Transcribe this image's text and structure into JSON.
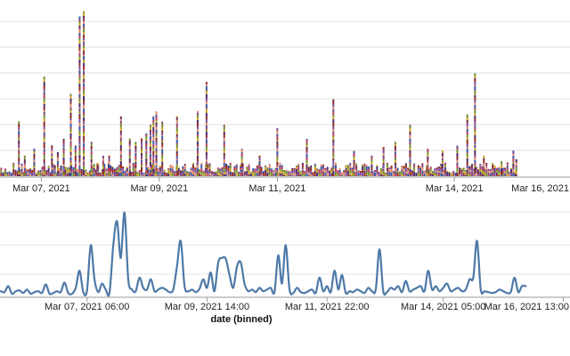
{
  "chart_data": [
    {
      "type": "bar",
      "name": "stacked-volume",
      "stacked": true,
      "x_axis": {
        "domain_days": [
          6.3,
          15.96
        ],
        "ticks": [
          {
            "day": 7.0,
            "label": "Mar 07, 2021"
          },
          {
            "day": 9.0,
            "label": "Mar 09, 2021"
          },
          {
            "day": 11.0,
            "label": "Mar 11, 2021"
          },
          {
            "day": 14.0,
            "label": "Mar 14, 2021"
          },
          {
            "day": 16.0,
            "label": "Mar 16, 2021"
          }
        ]
      },
      "ylim": [
        0,
        100
      ],
      "grid": true,
      "series_colors": [
        "#9b2d20",
        "#4a2f7a",
        "#c9a227",
        "#6f8f3a",
        "#b84060",
        "#3a5aa8",
        "#e08a6a",
        "#7a4f9e"
      ],
      "spikes": [
        {
          "day": 6.62,
          "value": 32
        },
        {
          "day": 6.72,
          "value": 12
        },
        {
          "day": 6.88,
          "value": 16
        },
        {
          "day": 7.05,
          "value": 58
        },
        {
          "day": 7.18,
          "value": 18
        },
        {
          "day": 7.28,
          "value": 14
        },
        {
          "day": 7.38,
          "value": 22
        },
        {
          "day": 7.5,
          "value": 48
        },
        {
          "day": 7.58,
          "value": 18
        },
        {
          "day": 7.65,
          "value": 93
        },
        {
          "day": 7.72,
          "value": 96
        },
        {
          "day": 7.85,
          "value": 20
        },
        {
          "day": 7.95,
          "value": 8
        },
        {
          "day": 8.05,
          "value": 12
        },
        {
          "day": 8.15,
          "value": 12
        },
        {
          "day": 8.35,
          "value": 35
        },
        {
          "day": 8.5,
          "value": 22
        },
        {
          "day": 8.6,
          "value": 20
        },
        {
          "day": 8.7,
          "value": 22
        },
        {
          "day": 8.78,
          "value": 25
        },
        {
          "day": 8.85,
          "value": 30
        },
        {
          "day": 8.9,
          "value": 35
        },
        {
          "day": 8.95,
          "value": 38
        },
        {
          "day": 9.05,
          "value": 32
        },
        {
          "day": 9.3,
          "value": 35
        },
        {
          "day": 9.65,
          "value": 38
        },
        {
          "day": 9.8,
          "value": 55
        },
        {
          "day": 10.1,
          "value": 30
        },
        {
          "day": 10.4,
          "value": 16
        },
        {
          "day": 10.7,
          "value": 12
        },
        {
          "day": 11.0,
          "value": 28
        },
        {
          "day": 11.5,
          "value": 22
        },
        {
          "day": 11.95,
          "value": 45
        },
        {
          "day": 12.3,
          "value": 15
        },
        {
          "day": 12.6,
          "value": 12
        },
        {
          "day": 12.8,
          "value": 17
        },
        {
          "day": 13.0,
          "value": 20
        },
        {
          "day": 13.25,
          "value": 30
        },
        {
          "day": 13.55,
          "value": 16
        },
        {
          "day": 13.8,
          "value": 15
        },
        {
          "day": 14.05,
          "value": 18
        },
        {
          "day": 14.22,
          "value": 36
        },
        {
          "day": 14.35,
          "value": 60
        },
        {
          "day": 14.5,
          "value": 12
        },
        {
          "day": 14.65,
          "value": 8
        },
        {
          "day": 14.8,
          "value": 9
        },
        {
          "day": 14.9,
          "value": 8
        },
        {
          "day": 15.0,
          "value": 15
        },
        {
          "day": 15.05,
          "value": 10
        }
      ]
    },
    {
      "type": "line",
      "name": "binned-count",
      "xlabel": "date (binned)",
      "x_axis": {
        "domain_hours": [
          222.8,
          374.8
        ],
        "ticks": [
          {
            "hour": 246,
            "label": "Mar 07, 2021 06:00"
          },
          {
            "hour": 278,
            "label": "Mar 09, 2021 14:00"
          },
          {
            "hour": 310,
            "label": "Mar 11, 2021 22:00"
          },
          {
            "hour": 341,
            "label": "Mar 14, 2021 05:00"
          },
          {
            "hour": 373,
            "label": "Mar 16, 2021 13:00"
          }
        ]
      },
      "ylim": [
        0,
        100
      ],
      "grid": true,
      "color": "#4e79a7",
      "points": [
        [
          223,
          6
        ],
        [
          224,
          5
        ],
        [
          225,
          12
        ],
        [
          226,
          3
        ],
        [
          227,
          6
        ],
        [
          228,
          7
        ],
        [
          229,
          4
        ],
        [
          230,
          8
        ],
        [
          231,
          3
        ],
        [
          232,
          5
        ],
        [
          233,
          6
        ],
        [
          234,
          4
        ],
        [
          235,
          14
        ],
        [
          236,
          3
        ],
        [
          237,
          4
        ],
        [
          238,
          6
        ],
        [
          239,
          5
        ],
        [
          240,
          16
        ],
        [
          241,
          4
        ],
        [
          242,
          3
        ],
        [
          243,
          10
        ],
        [
          244,
          30
        ],
        [
          245,
          5
        ],
        [
          246,
          7
        ],
        [
          247,
          60
        ],
        [
          248,
          20
        ],
        [
          249,
          5
        ],
        [
          250,
          15
        ],
        [
          251,
          8
        ],
        [
          252,
          4
        ],
        [
          253,
          60
        ],
        [
          254,
          88
        ],
        [
          255,
          45
        ],
        [
          256,
          98
        ],
        [
          257,
          20
        ],
        [
          258,
          8
        ],
        [
          259,
          6
        ],
        [
          260,
          22
        ],
        [
          261,
          10
        ],
        [
          262,
          8
        ],
        [
          263,
          20
        ],
        [
          264,
          6
        ],
        [
          265,
          8
        ],
        [
          266,
          10
        ],
        [
          267,
          8
        ],
        [
          268,
          5
        ],
        [
          269,
          8
        ],
        [
          270,
          35
        ],
        [
          271,
          65
        ],
        [
          272,
          12
        ],
        [
          273,
          6
        ],
        [
          274,
          8
        ],
        [
          275,
          5
        ],
        [
          276,
          9
        ],
        [
          277,
          20
        ],
        [
          278,
          10
        ],
        [
          279,
          28
        ],
        [
          280,
          6
        ],
        [
          281,
          40
        ],
        [
          282,
          45
        ],
        [
          283,
          44
        ],
        [
          284,
          25
        ],
        [
          285,
          10
        ],
        [
          286,
          35
        ],
        [
          287,
          40
        ],
        [
          288,
          15
        ],
        [
          289,
          6
        ],
        [
          290,
          8
        ],
        [
          291,
          5
        ],
        [
          292,
          10
        ],
        [
          293,
          6
        ],
        [
          294,
          8
        ],
        [
          295,
          10
        ],
        [
          296,
          5
        ],
        [
          297,
          48
        ],
        [
          298,
          15
        ],
        [
          299,
          60
        ],
        [
          300,
          8
        ],
        [
          301,
          4
        ],
        [
          302,
          10
        ],
        [
          303,
          5
        ],
        [
          304,
          4
        ],
        [
          305,
          6
        ],
        [
          306,
          8
        ],
        [
          307,
          4
        ],
        [
          308,
          22
        ],
        [
          309,
          6
        ],
        [
          310,
          12
        ],
        [
          311,
          5
        ],
        [
          312,
          30
        ],
        [
          313,
          8
        ],
        [
          314,
          25
        ],
        [
          315,
          4
        ],
        [
          316,
          6
        ],
        [
          317,
          5
        ],
        [
          318,
          8
        ],
        [
          319,
          6
        ],
        [
          320,
          4
        ],
        [
          321,
          10
        ],
        [
          322,
          6
        ],
        [
          323,
          8
        ],
        [
          324,
          55
        ],
        [
          325,
          6
        ],
        [
          326,
          5
        ],
        [
          327,
          10
        ],
        [
          328,
          8
        ],
        [
          329,
          12
        ],
        [
          330,
          5
        ],
        [
          331,
          18
        ],
        [
          332,
          6
        ],
        [
          333,
          8
        ],
        [
          334,
          10
        ],
        [
          335,
          12
        ],
        [
          336,
          6
        ],
        [
          337,
          30
        ],
        [
          338,
          8
        ],
        [
          339,
          12
        ],
        [
          340,
          6
        ],
        [
          341,
          10
        ],
        [
          342,
          15
        ],
        [
          343,
          6
        ],
        [
          344,
          8
        ],
        [
          345,
          10
        ],
        [
          346,
          6
        ],
        [
          347,
          8
        ],
        [
          348,
          20
        ],
        [
          349,
          22
        ],
        [
          350,
          65
        ],
        [
          351,
          8
        ],
        [
          352,
          6
        ],
        [
          353,
          5
        ],
        [
          354,
          4
        ],
        [
          355,
          5
        ],
        [
          356,
          8
        ],
        [
          357,
          6
        ],
        [
          358,
          4
        ],
        [
          359,
          5
        ],
        [
          360,
          22
        ],
        [
          361,
          5
        ],
        [
          362,
          12
        ],
        [
          363,
          12
        ]
      ]
    }
  ]
}
